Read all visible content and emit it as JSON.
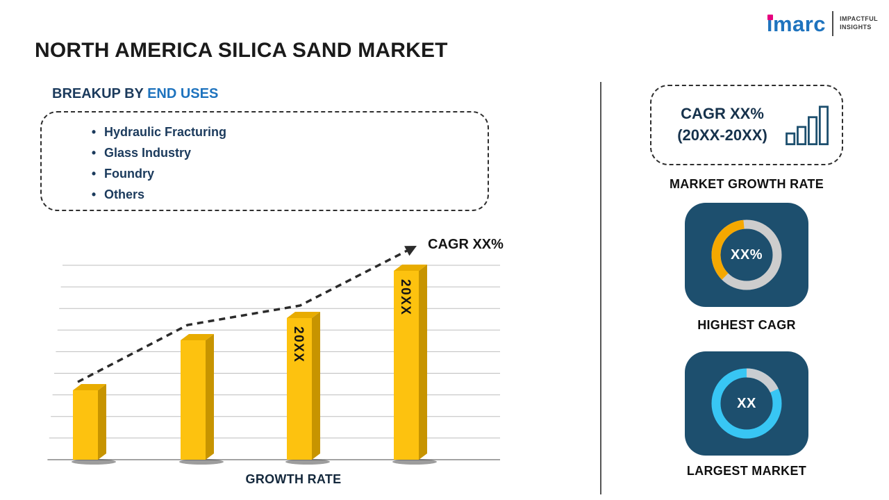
{
  "page": {
    "title": "NORTH AMERICA SILICA SAND MARKET"
  },
  "logo": {
    "brand": "imarc",
    "tagline_line1": "IMPACTFUL",
    "tagline_line2": "INSIGHTS"
  },
  "breakup": {
    "heading_prefix": "BREAKUP BY",
    "heading_highlight": "END USES",
    "bullet": "•",
    "items": [
      "Hydraulic Fracturing",
      "Glass Industry",
      "Foundry",
      "Others"
    ]
  },
  "sidebar": {
    "growth_box": {
      "line1": "CAGR XX%",
      "line2": "(20XX-20XX)",
      "caption": "MARKET GROWTH RATE"
    }
  },
  "chart_data": [
    {
      "type": "bar",
      "title": "",
      "categories": [
        "",
        "",
        "20XX",
        "20XX"
      ],
      "values": [
        100,
        172,
        204,
        272
      ],
      "xlabel": "GROWTH RATE",
      "ylabel": "",
      "annotation": "CAGR XX%",
      "trend": "dashed rising arrow",
      "grid": true,
      "legend": false,
      "bar_colors": {
        "front": "#FDC20F",
        "side": "#C79400",
        "top": "#E8AC00"
      }
    },
    {
      "type": "donut",
      "title": "HIGHEST CAGR",
      "center_label": "XX%",
      "base_color": "#CDCDCD",
      "accent_color": "#F5A800",
      "accent_fraction": 0.36,
      "accent_start_deg": 135,
      "card_color": "#1D4F6E"
    },
    {
      "type": "donut",
      "title": "LARGEST MARKET",
      "center_label": "XX",
      "base_color": "#38C6F4",
      "accent_color": "#C9CDD1",
      "accent_fraction": 0.18,
      "accent_start_deg": -90,
      "card_color": "#1D4F6E"
    }
  ],
  "colors": {
    "title_text": "#1A1A1A",
    "navy_text": "#1B3A5C",
    "accent_blue": "#1E73BE",
    "card_background": "#1D4F6E",
    "divider": "#555555",
    "logo_blue": "#1E73BE",
    "logo_magenta": "#E6007E"
  }
}
